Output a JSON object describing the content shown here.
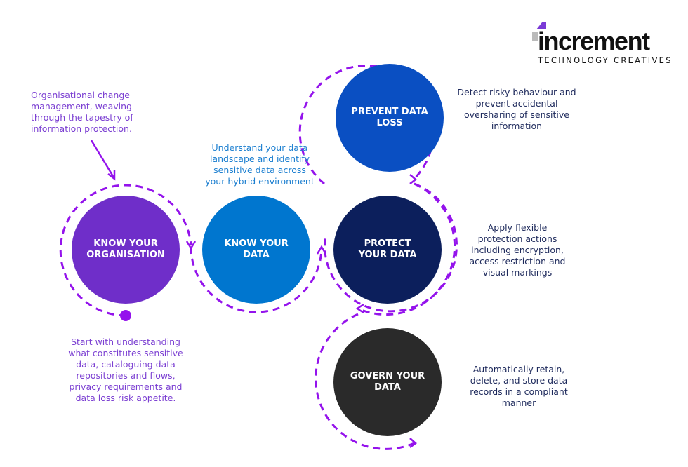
{
  "logo": {
    "name": "increment",
    "tagline": "TECHNOLOGY CREATIVES"
  },
  "colors": {
    "dash": "#9413ec",
    "know_org": "#6f2ec9",
    "know_data": "#0076cf",
    "prevent": "#0a4fc2",
    "protect": "#0c1f5c",
    "govern": "#2a2a2a"
  },
  "nodes": {
    "know_org": {
      "label_1": "KNOW YOUR",
      "label_2": "ORGANISATION"
    },
    "know_data": {
      "label_1": "KNOW YOUR",
      "label_2": "DATA"
    },
    "prevent": {
      "label_1": "PREVENT DATA",
      "label_2": "LOSS"
    },
    "protect": {
      "label_1": "PROTECT",
      "label_2": "YOUR DATA"
    },
    "govern": {
      "label_1": "GOVERN YOUR",
      "label_2": "DATA"
    }
  },
  "notes": {
    "org_change": "Organisational change management, weaving through the tapestry of information protection.",
    "org_start": "Start with understanding what constitutes sensitive data, cataloguing data repositories and flows, privacy requirements and data loss risk appetite.",
    "know_data": "Understand your data landscape and identify sensitive data across your hybrid environment",
    "prevent": "Detect risky behaviour and prevent accidental oversharing of sensitive information",
    "protect": "Apply flexible protection actions including encryption, access restriction and visual markings",
    "govern": "Automatically retain, delete, and store data records in a compliant manner"
  }
}
